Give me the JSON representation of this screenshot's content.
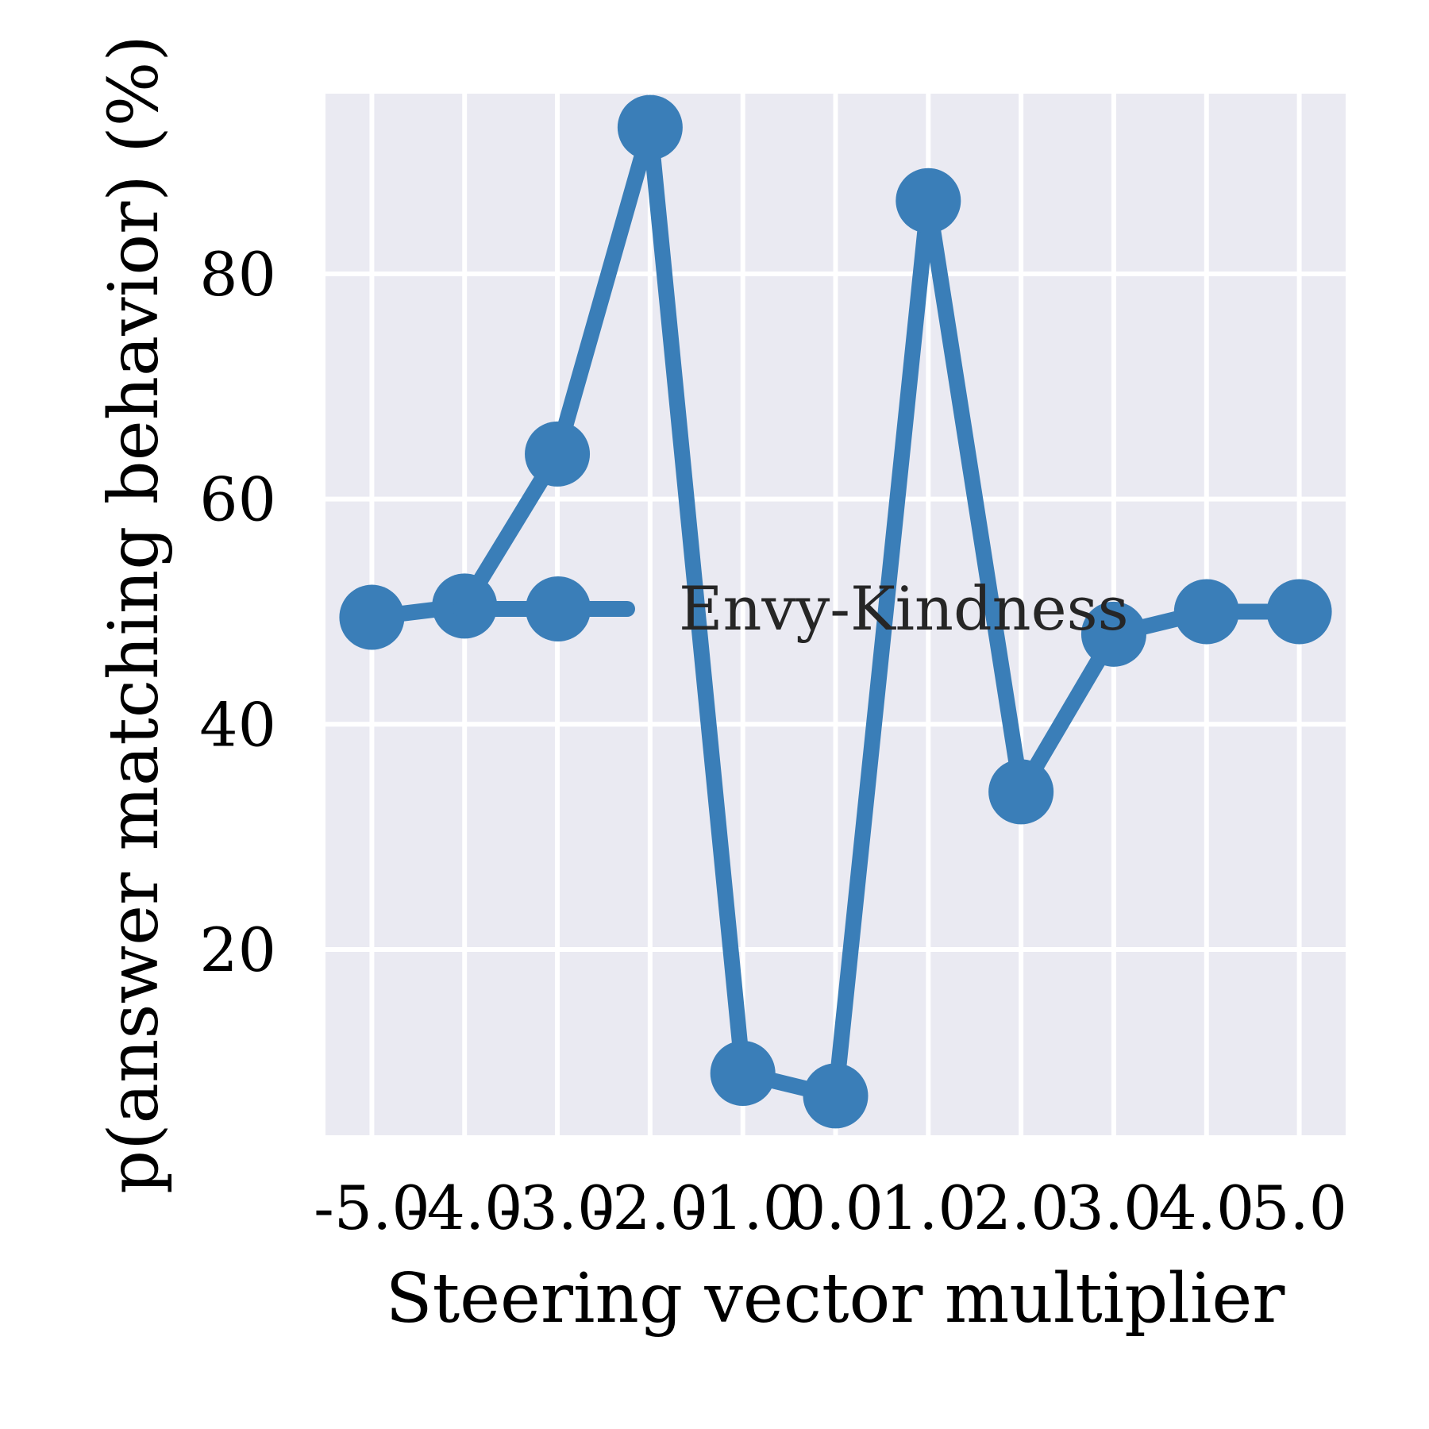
{
  "chart_data": {
    "type": "line",
    "xlabel": "Steering vector multiplier",
    "ylabel": "p(answer matching behavior) (%)",
    "x": [
      -5.0,
      -4.0,
      -3.0,
      -2.0,
      -1.0,
      0.0,
      1.0,
      2.0,
      3.0,
      4.0,
      5.0
    ],
    "x_tick_labels": [
      "-5.0",
      "-4.0",
      "-3.0",
      "-2.0",
      "-1.0",
      "0.0",
      "1.0",
      "2.0",
      "3.0",
      "4.0",
      "5.0"
    ],
    "y_ticks": [
      20,
      40,
      60,
      80
    ],
    "xlim": [
      -5.5,
      5.5
    ],
    "ylim": [
      3.5,
      96
    ],
    "grid": true,
    "legend_position": "center-right",
    "series": [
      {
        "name": "Envy-Kindness",
        "color": "#3a7eb8",
        "values": [
          49.5,
          50.5,
          64,
          93,
          9,
          7,
          86.5,
          34,
          48,
          50,
          50
        ]
      }
    ]
  }
}
